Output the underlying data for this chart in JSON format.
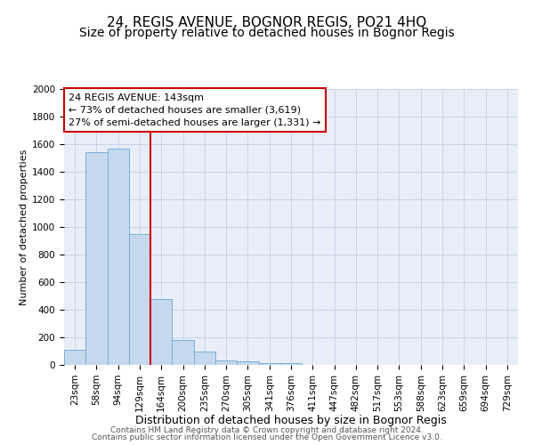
{
  "title": "24, REGIS AVENUE, BOGNOR REGIS, PO21 4HQ",
  "subtitle": "Size of property relative to detached houses in Bognor Regis",
  "xlabel": "Distribution of detached houses by size in Bognor Regis",
  "ylabel": "Number of detached properties",
  "bin_labels": [
    "23sqm",
    "58sqm",
    "94sqm",
    "129sqm",
    "164sqm",
    "200sqm",
    "235sqm",
    "270sqm",
    "305sqm",
    "341sqm",
    "376sqm",
    "411sqm",
    "447sqm",
    "482sqm",
    "517sqm",
    "553sqm",
    "588sqm",
    "623sqm",
    "659sqm",
    "694sqm",
    "729sqm"
  ],
  "bar_values": [
    110,
    1540,
    1570,
    950,
    480,
    180,
    95,
    35,
    25,
    15,
    10,
    0,
    0,
    0,
    0,
    0,
    0,
    0,
    0,
    0,
    0
  ],
  "bar_color": "#c5d8ee",
  "bar_edge_color": "#7bafd4",
  "vline_x_pos": 3.5,
  "vline_color": "#cc0000",
  "annotation_line1": "24 REGIS AVENUE: 143sqm",
  "annotation_line2": "← 73% of detached houses are smaller (3,619)",
  "annotation_line3": "27% of semi-detached houses are larger (1,331) →",
  "annotation_box_color": "#ffffff",
  "annotation_box_edge": "#cc0000",
  "ylim": [
    0,
    2000
  ],
  "yticks": [
    0,
    200,
    400,
    600,
    800,
    1000,
    1200,
    1400,
    1600,
    1800,
    2000
  ],
  "grid_color": "#c8d4e8",
  "bg_color": "#e8eef8",
  "footer_line1": "Contains HM Land Registry data © Crown copyright and database right 2024.",
  "footer_line2": "Contains public sector information licensed under the Open Government Licence v3.0.",
  "title_fontsize": 11,
  "subtitle_fontsize": 10,
  "xlabel_fontsize": 9,
  "ylabel_fontsize": 8,
  "annot_fontsize": 8,
  "tick_fontsize": 7.5,
  "footer_fontsize": 6.5
}
